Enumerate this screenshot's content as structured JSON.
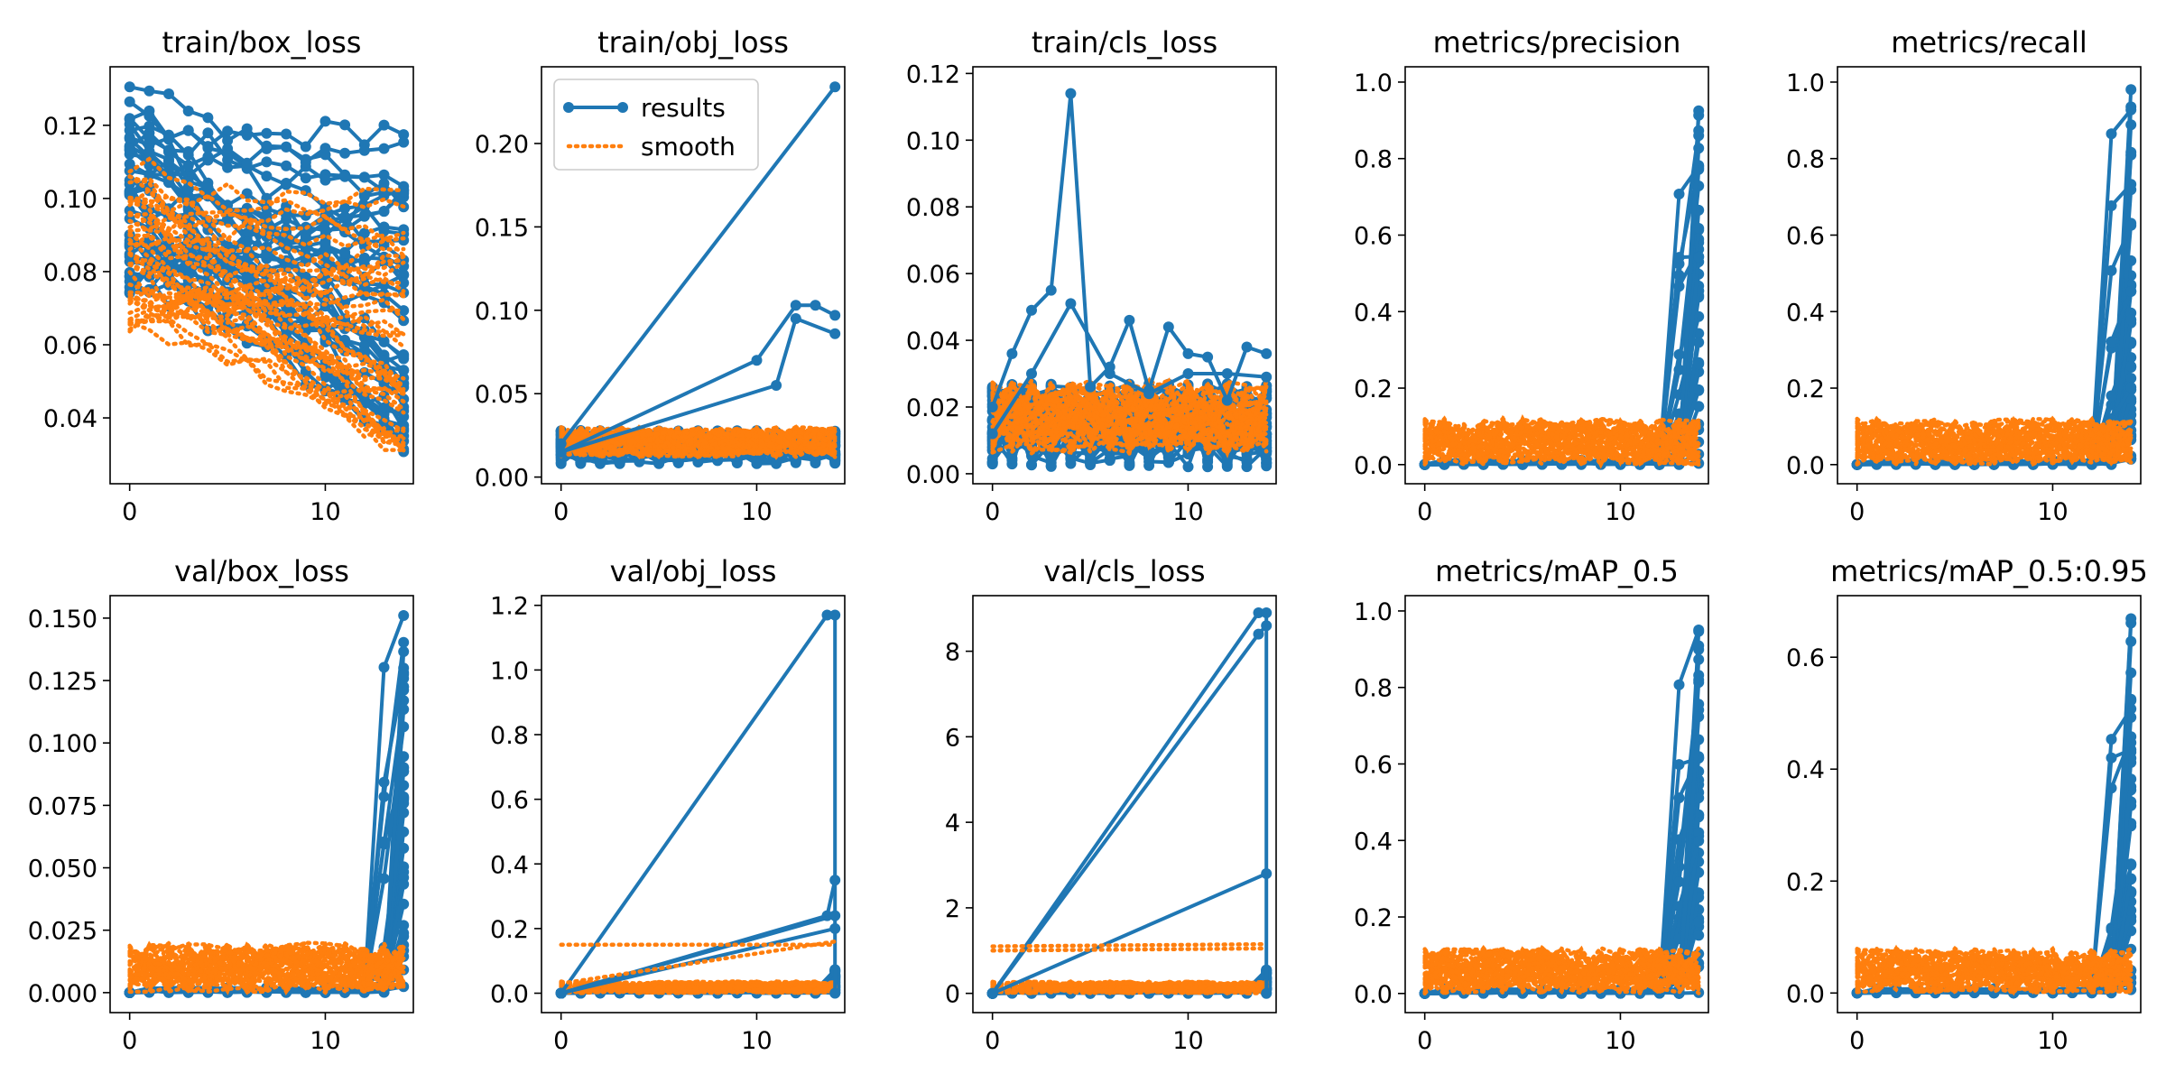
{
  "colors": {
    "results": "#1f77b4",
    "smooth": "#ff7f0e",
    "frame": "#000000",
    "background": "#ffffff"
  },
  "chart_data": [
    {
      "type": "line",
      "title": "train/box_loss",
      "xlim": [
        -1,
        14.5
      ],
      "ylim": [
        0.022,
        0.136
      ],
      "xticks": [
        0,
        10
      ],
      "yticks": [
        0.04,
        0.06,
        0.08,
        0.1,
        0.12
      ],
      "ytick_labels": [
        "0.04",
        "0.06",
        "0.08",
        "0.10",
        "0.12"
      ],
      "runs": 45,
      "epochs": 15,
      "series_summary": {
        "results_start_range": [
          0.065,
          0.13
        ],
        "results_end_range": [
          0.027,
          0.12
        ],
        "smooth_range": [
          0.055,
          0.12
        ]
      }
    },
    {
      "type": "line",
      "title": "train/obj_loss",
      "xlim": [
        -1,
        14.5
      ],
      "ylim": [
        -0.004,
        0.246
      ],
      "xticks": [
        0,
        10
      ],
      "yticks": [
        0.0,
        0.05,
        0.1,
        0.15,
        0.2
      ],
      "ytick_labels": [
        "0.00",
        "0.05",
        "0.10",
        "0.15",
        "0.20"
      ],
      "legend": {
        "entries": [
          "results",
          "smooth"
        ],
        "position": "top-left"
      },
      "highlighted": [
        {
          "name": "results",
          "x": [
            0,
            14
          ],
          "y": [
            0.02,
            0.234
          ]
        },
        {
          "name": "results",
          "x": [
            0,
            10,
            12,
            13,
            14
          ],
          "y": [
            0.015,
            0.07,
            0.103,
            0.103,
            0.097
          ]
        },
        {
          "name": "results",
          "x": [
            0,
            11,
            12,
            14
          ],
          "y": [
            0.015,
            0.055,
            0.095,
            0.086
          ]
        }
      ],
      "series_summary": {
        "results_range": [
          0.007,
          0.03
        ],
        "smooth_range": [
          0.012,
          0.066
        ]
      }
    },
    {
      "type": "line",
      "title": "train/cls_loss",
      "xlim": [
        -1,
        14.5
      ],
      "ylim": [
        -0.003,
        0.122
      ],
      "xticks": [
        0,
        10
      ],
      "yticks": [
        0.0,
        0.02,
        0.04,
        0.06,
        0.08,
        0.1,
        0.12
      ],
      "ytick_labels": [
        "0.00",
        "0.02",
        "0.04",
        "0.06",
        "0.08",
        "0.10",
        "0.12"
      ],
      "highlighted": [
        {
          "name": "results",
          "x": [
            0,
            1,
            2,
            3,
            4,
            5,
            6,
            7,
            8,
            9,
            10,
            11,
            12,
            13,
            14
          ],
          "y": [
            0.02,
            0.036,
            0.049,
            0.055,
            0.114,
            0.026,
            0.032,
            0.046,
            0.025,
            0.044,
            0.036,
            0.035,
            0.022,
            0.038,
            0.036
          ]
        },
        {
          "name": "results",
          "x": [
            0,
            2,
            4,
            6,
            8,
            10,
            12,
            14
          ],
          "y": [
            0.012,
            0.03,
            0.051,
            0.03,
            0.024,
            0.03,
            0.03,
            0.029
          ]
        }
      ],
      "series_summary": {
        "results_range": [
          0.0,
          0.03
        ],
        "smooth_range": [
          0.008,
          0.03
        ]
      }
    },
    {
      "type": "line",
      "title": "metrics/precision",
      "xlim": [
        -1,
        14.5
      ],
      "ylim": [
        -0.05,
        1.04
      ],
      "xticks": [
        0,
        10
      ],
      "yticks": [
        0.0,
        0.2,
        0.4,
        0.6,
        0.8,
        1.0
      ],
      "ytick_labels": [
        "0.0",
        "0.2",
        "0.4",
        "0.6",
        "0.8",
        "1.0"
      ],
      "series_summary": {
        "results_start": 0.0,
        "results_end_max": 0.99,
        "smooth_range": [
          0.0,
          0.13
        ]
      }
    },
    {
      "type": "line",
      "title": "metrics/recall",
      "xlim": [
        -1,
        14.5
      ],
      "ylim": [
        -0.05,
        1.04
      ],
      "xticks": [
        0,
        10
      ],
      "yticks": [
        0.0,
        0.2,
        0.4,
        0.6,
        0.8,
        1.0
      ],
      "ytick_labels": [
        "0.0",
        "0.2",
        "0.4",
        "0.6",
        "0.8",
        "1.0"
      ],
      "series_summary": {
        "results_start": 0.0,
        "results_end_max": 1.0,
        "smooth_range": [
          0.0,
          0.13
        ]
      }
    },
    {
      "type": "line",
      "title": "val/box_loss",
      "xlim": [
        -1,
        14.5
      ],
      "ylim": [
        -0.008,
        0.159
      ],
      "xticks": [
        0,
        10
      ],
      "yticks": [
        0.0,
        0.025,
        0.05,
        0.075,
        0.1,
        0.125,
        0.15
      ],
      "ytick_labels": [
        "0.000",
        "0.025",
        "0.050",
        "0.075",
        "0.100",
        "0.125",
        "0.150"
      ],
      "series_summary": {
        "results_start": 0.0,
        "results_end_max": 0.151,
        "smooth_range": [
          0.0,
          0.02
        ]
      }
    },
    {
      "type": "line",
      "title": "val/obj_loss",
      "xlim": [
        -1,
        14.5
      ],
      "ylim": [
        -0.06,
        1.23
      ],
      "xticks": [
        0,
        10
      ],
      "yticks": [
        0.0,
        0.2,
        0.4,
        0.6,
        0.8,
        1.0,
        1.2
      ],
      "ytick_labels": [
        "0.0",
        "0.2",
        "0.4",
        "0.6",
        "0.8",
        "1.0",
        "1.2"
      ],
      "highlighted": [
        {
          "name": "results",
          "x": [
            0,
            13.6,
            14,
            14
          ],
          "y": [
            0.0,
            1.17,
            1.17,
            0.0
          ]
        },
        {
          "name": "results",
          "x": [
            0,
            13.6,
            14
          ],
          "y": [
            0.0,
            0.24,
            0.35
          ]
        },
        {
          "name": "results",
          "x": [
            0,
            14
          ],
          "y": [
            0.0,
            0.24
          ]
        },
        {
          "name": "results",
          "x": [
            0,
            14
          ],
          "y": [
            0.0,
            0.2
          ]
        },
        {
          "name": "smooth",
          "x": [
            0,
            14
          ],
          "y": [
            0.15,
            0.15
          ]
        },
        {
          "name": "smooth",
          "x": [
            0,
            14
          ],
          "y": [
            0.03,
            0.16
          ]
        }
      ],
      "series_summary": {
        "results_range": [
          0.0,
          1.17
        ],
        "smooth_range": [
          0.0,
          0.16
        ]
      }
    },
    {
      "type": "line",
      "title": "val/cls_loss",
      "xlim": [
        -1,
        14.5
      ],
      "ylim": [
        -0.45,
        9.3
      ],
      "xticks": [
        0,
        10
      ],
      "yticks": [
        0,
        2,
        4,
        6,
        8
      ],
      "ytick_labels": [
        "0",
        "2",
        "4",
        "6",
        "8"
      ],
      "highlighted": [
        {
          "name": "results",
          "x": [
            0,
            13.6,
            14,
            14
          ],
          "y": [
            0.0,
            8.9,
            8.9,
            0.0
          ]
        },
        {
          "name": "results",
          "x": [
            0,
            13.6,
            14
          ],
          "y": [
            0.0,
            8.4,
            8.6
          ]
        },
        {
          "name": "results",
          "x": [
            0,
            14
          ],
          "y": [
            0.0,
            2.8
          ]
        },
        {
          "name": "smooth",
          "x": [
            0,
            14
          ],
          "y": [
            1.1,
            1.15
          ]
        },
        {
          "name": "smooth",
          "x": [
            0,
            14
          ],
          "y": [
            1.0,
            1.05
          ]
        }
      ],
      "series_summary": {
        "results_range": [
          0.0,
          8.9
        ],
        "smooth_range": [
          0.0,
          1.15
        ]
      }
    },
    {
      "type": "line",
      "title": "metrics/mAP_0.5",
      "xlim": [
        -1,
        14.5
      ],
      "ylim": [
        -0.05,
        1.04
      ],
      "xticks": [
        0,
        10
      ],
      "yticks": [
        0.0,
        0.2,
        0.4,
        0.6,
        0.8,
        1.0
      ],
      "ytick_labels": [
        "0.0",
        "0.2",
        "0.4",
        "0.6",
        "0.8",
        "1.0"
      ],
      "series_summary": {
        "results_start": 0.0,
        "results_end_max": 0.99,
        "smooth_range": [
          0.0,
          0.12
        ]
      }
    },
    {
      "type": "line",
      "title": "metrics/mAP_0.5:0.95",
      "xlim": [
        -1,
        14.5
      ],
      "ylim": [
        -0.035,
        0.71
      ],
      "xticks": [
        0,
        10
      ],
      "yticks": [
        0.0,
        0.2,
        0.4,
        0.6
      ],
      "ytick_labels": [
        "0.0",
        "0.2",
        "0.4",
        "0.6"
      ],
      "series_summary": {
        "results_start": 0.0,
        "results_end_max": 0.68,
        "smooth_range": [
          0.0,
          0.085
        ]
      }
    }
  ]
}
